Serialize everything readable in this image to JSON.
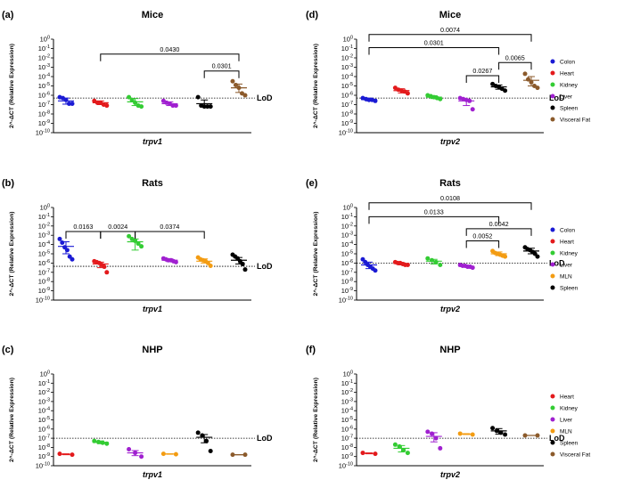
{
  "chart_data": [
    {
      "panel": "(a)",
      "type": "scatter",
      "title": "Mice",
      "xlabel": "trpv1",
      "ylabel": "2^-ΔCT (Relative Expression)",
      "ylim_log10": [
        -10,
        0
      ],
      "y_scale": "log",
      "lod_log10": -6.3,
      "lod_label": "LoD",
      "legend": [],
      "groups": [
        {
          "name": "Colon",
          "color": "#1a1ad4",
          "values_log10": [
            -6.2,
            -6.3,
            -6.5,
            -6.9,
            -6.9
          ],
          "mean_log10": -6.6,
          "err_log10": [
            -6.95,
            -6.3
          ]
        },
        {
          "name": "Heart",
          "color": "#e31a1c",
          "values_log10": [
            -6.6,
            -6.8,
            -6.8,
            -7.0,
            -7.1
          ],
          "mean_log10": -6.8,
          "err_log10": [
            -7.0,
            -6.6
          ]
        },
        {
          "name": "Kidney",
          "color": "#33cc33",
          "values_log10": [
            -6.2,
            -6.5,
            -6.8,
            -7.1,
            -7.2
          ],
          "mean_log10": -6.7,
          "err_log10": [
            -7.1,
            -6.35
          ]
        },
        {
          "name": "Liver",
          "color": "#a020d0",
          "values_log10": [
            -6.6,
            -6.8,
            -6.9,
            -7.1,
            -7.1
          ],
          "mean_log10": -6.9,
          "err_log10": [
            -7.1,
            -6.7
          ]
        },
        {
          "name": "Spleen",
          "color": "#000000",
          "values_log10": [
            -6.2,
            -7.1,
            -7.2,
            -7.2,
            -7.2
          ],
          "mean_log10": -6.9,
          "err_log10": [
            -7.2,
            -6.5
          ]
        },
        {
          "name": "Visceral Fat",
          "color": "#8b5a2b",
          "values_log10": [
            -4.5,
            -4.9,
            -5.2,
            -5.8,
            -6.0
          ],
          "mean_log10": -5.2,
          "err_log10": [
            -5.7,
            -4.8
          ]
        }
      ],
      "comparisons": [
        {
          "from": 1,
          "to": 5,
          "label": "0.0430",
          "at_log10": -1.6
        },
        {
          "from": 4,
          "to": 5,
          "label": "0.0301",
          "at_log10": -3.4
        }
      ]
    },
    {
      "panel": "(b)",
      "type": "scatter",
      "title": "Rats",
      "xlabel": "trpv1",
      "ylabel": "2^-ΔCT (Relative Expression)",
      "ylim_log10": [
        -10,
        0
      ],
      "y_scale": "log",
      "lod_log10": -6.35,
      "lod_label": "LoD",
      "legend": [],
      "groups": [
        {
          "name": "Colon",
          "color": "#1a1ad4",
          "values_log10": [
            -3.4,
            -3.8,
            -4.3,
            -4.6,
            -5.3,
            -5.6
          ],
          "mean_log10": -4.2,
          "err_log10": [
            -5.0,
            -3.7
          ]
        },
        {
          "name": "Heart",
          "color": "#e31a1c",
          "values_log10": [
            -5.8,
            -5.9,
            -6.0,
            -6.2,
            -6.4,
            -7.0
          ],
          "mean_log10": -6.1,
          "err_log10": [
            -6.5,
            -5.9
          ]
        },
        {
          "name": "Kidney",
          "color": "#33cc33",
          "values_log10": [
            -3.1,
            -3.4,
            -3.6,
            -3.9,
            -4.2
          ],
          "mean_log10": -3.7,
          "err_log10": [
            -4.6,
            -3.4
          ]
        },
        {
          "name": "Liver",
          "color": "#a020d0",
          "values_log10": [
            -5.5,
            -5.6,
            -5.7,
            -5.7,
            -5.8,
            -5.9
          ],
          "mean_log10": -5.7,
          "err_log10": [
            -5.85,
            -5.55
          ]
        },
        {
          "name": "MLN",
          "color": "#f39c12",
          "values_log10": [
            -5.4,
            -5.6,
            -5.7,
            -5.8,
            -6.0,
            -6.3
          ],
          "mean_log10": -5.8,
          "err_log10": [
            -6.0,
            -5.55
          ]
        },
        {
          "name": "Spleen",
          "color": "#000000",
          "values_log10": [
            -5.1,
            -5.3,
            -5.5,
            -5.8,
            -6.1,
            -6.7
          ],
          "mean_log10": -5.7,
          "err_log10": [
            -6.1,
            -5.4
          ]
        }
      ],
      "comparisons": [
        {
          "from": 0,
          "to": 1,
          "label": "0.0163",
          "at_log10": -2.6
        },
        {
          "from": 1,
          "to": 2,
          "label": "0.0024",
          "at_log10": -2.6
        },
        {
          "from": 2,
          "to": 4,
          "label": "0.0374",
          "at_log10": -2.6
        }
      ]
    },
    {
      "panel": "(c)",
      "type": "scatter",
      "title": "NHP",
      "xlabel": "trpv1",
      "ylabel": "2^-ΔCT (Relative Expression)",
      "ylim_log10": [
        -10,
        0
      ],
      "y_scale": "log",
      "lod_log10": -7.0,
      "lod_label": "LoD",
      "legend": [],
      "groups": [
        {
          "name": "Heart",
          "color": "#e31a1c",
          "values_log10": [
            -8.7,
            -8.8
          ],
          "mean_log10": -8.75,
          "err_log10": [
            -8.8,
            -8.7
          ]
        },
        {
          "name": "Kidney",
          "color": "#33cc33",
          "values_log10": [
            -7.3,
            -7.4,
            -7.5,
            -7.6
          ],
          "mean_log10": -7.45,
          "err_log10": [
            -7.6,
            -7.3
          ]
        },
        {
          "name": "Liver",
          "color": "#a020d0",
          "values_log10": [
            -8.2,
            -8.6,
            -9.0
          ],
          "mean_log10": -8.6,
          "err_log10": [
            -8.9,
            -8.35
          ]
        },
        {
          "name": "MLN",
          "color": "#f39c12",
          "values_log10": [
            -8.7,
            -8.75
          ],
          "mean_log10": -8.72,
          "err_log10": [
            -8.75,
            -8.7
          ]
        },
        {
          "name": "Spleen",
          "color": "#000000",
          "values_log10": [
            -6.4,
            -6.7,
            -7.3,
            -8.4
          ],
          "mean_log10": -6.9,
          "err_log10": [
            -7.5,
            -6.6
          ]
        },
        {
          "name": "Visceral Fat",
          "color": "#8b5a2b",
          "values_log10": [
            -8.8,
            -8.8
          ],
          "mean_log10": -8.8,
          "err_log10": [
            -8.8,
            -8.8
          ]
        }
      ],
      "comparisons": []
    },
    {
      "panel": "(d)",
      "type": "scatter",
      "title": "Mice",
      "xlabel": "trpv2",
      "ylabel": "2^-ΔCT (Relative Expression)",
      "ylim_log10": [
        -10,
        0
      ],
      "y_scale": "log",
      "lod_log10": -6.3,
      "lod_label": "LoD",
      "legend": [
        "Colon",
        "Heart",
        "Kidney",
        "Liver",
        "Spleen",
        "Visceral Fat"
      ],
      "groups": [
        {
          "name": "Colon",
          "color": "#1a1ad4",
          "values_log10": [
            -6.3,
            -6.4,
            -6.5,
            -6.5,
            -6.6
          ],
          "mean_log10": -6.45,
          "err_log10": [
            -6.6,
            -6.3
          ]
        },
        {
          "name": "Heart",
          "color": "#e31a1c",
          "values_log10": [
            -5.2,
            -5.4,
            -5.5,
            -5.6,
            -5.8
          ],
          "mean_log10": -5.5,
          "err_log10": [
            -5.75,
            -5.3
          ]
        },
        {
          "name": "Kidney",
          "color": "#33cc33",
          "values_log10": [
            -6.0,
            -6.1,
            -6.2,
            -6.3,
            -6.4
          ],
          "mean_log10": -6.2,
          "err_log10": [
            -6.35,
            -6.05
          ]
        },
        {
          "name": "Liver",
          "color": "#a020d0",
          "values_log10": [
            -6.3,
            -6.4,
            -6.5,
            -6.6,
            -7.5
          ],
          "mean_log10": -6.6,
          "err_log10": [
            -7.1,
            -6.4
          ]
        },
        {
          "name": "Spleen",
          "color": "#000000",
          "values_log10": [
            -4.8,
            -5.0,
            -5.1,
            -5.3,
            -5.5
          ],
          "mean_log10": -5.1,
          "err_log10": [
            -5.35,
            -4.9
          ]
        },
        {
          "name": "Visceral Fat",
          "color": "#8b5a2b",
          "values_log10": [
            -3.7,
            -4.3,
            -4.6,
            -5.0,
            -5.2
          ],
          "mean_log10": -4.4,
          "err_log10": [
            -5.0,
            -4.0
          ]
        }
      ],
      "comparisons": [
        {
          "from": 0,
          "to": 5,
          "label": "0.0074",
          "at_log10": 0.5
        },
        {
          "from": 0,
          "to": 4,
          "label": "0.0301",
          "at_log10": -0.9
        },
        {
          "from": 4,
          "to": 5,
          "label": "0.0065",
          "at_log10": -2.5
        },
        {
          "from": 3,
          "to": 4,
          "label": "0.0267",
          "at_log10": -3.9
        }
      ]
    },
    {
      "panel": "(e)",
      "type": "scatter",
      "title": "Rats",
      "xlabel": "trpv2",
      "ylabel": "2^-ΔCT (Relative Expression)",
      "ylim_log10": [
        -10,
        0
      ],
      "y_scale": "log",
      "lod_log10": -6.0,
      "lod_label": "LoD",
      "legend": [
        "Colon",
        "Heart",
        "Kidney",
        "Liver",
        "MLN",
        "Spleen"
      ],
      "groups": [
        {
          "name": "Colon",
          "color": "#1a1ad4",
          "values_log10": [
            -5.6,
            -5.9,
            -6.2,
            -6.4,
            -6.6,
            -6.8
          ],
          "mean_log10": -6.2,
          "err_log10": [
            -6.6,
            -5.9
          ]
        },
        {
          "name": "Heart",
          "color": "#e31a1c",
          "values_log10": [
            -5.9,
            -6.0,
            -6.0,
            -6.1,
            -6.2,
            -6.2
          ],
          "mean_log10": -6.05,
          "err_log10": [
            -6.2,
            -5.95
          ]
        },
        {
          "name": "Kidney",
          "color": "#33cc33",
          "values_log10": [
            -5.5,
            -5.7,
            -5.9,
            -6.2
          ],
          "mean_log10": -5.8,
          "err_log10": [
            -6.1,
            -5.6
          ]
        },
        {
          "name": "Liver",
          "color": "#a020d0",
          "values_log10": [
            -6.2,
            -6.3,
            -6.3,
            -6.4,
            -6.4,
            -6.5
          ],
          "mean_log10": -6.35,
          "err_log10": [
            -6.45,
            -6.25
          ]
        },
        {
          "name": "MLN",
          "color": "#f39c12",
          "values_log10": [
            -4.7,
            -4.9,
            -5.0,
            -5.1,
            -5.2,
            -5.3
          ],
          "mean_log10": -5.0,
          "err_log10": [
            -5.2,
            -4.8
          ]
        },
        {
          "name": "Spleen",
          "color": "#000000",
          "values_log10": [
            -4.3,
            -4.5,
            -4.6,
            -4.8,
            -5.0,
            -5.3
          ],
          "mean_log10": -4.7,
          "err_log10": [
            -5.0,
            -4.4
          ]
        }
      ],
      "comparisons": [
        {
          "from": 0,
          "to": 5,
          "label": "0.0108",
          "at_log10": 0.5
        },
        {
          "from": 0,
          "to": 4,
          "label": "0.0133",
          "at_log10": -1.0
        },
        {
          "from": 3,
          "to": 5,
          "label": "0.0042",
          "at_log10": -2.3
        },
        {
          "from": 3,
          "to": 4,
          "label": "0.0052",
          "at_log10": -3.6
        }
      ]
    },
    {
      "panel": "(f)",
      "type": "scatter",
      "title": "NHP",
      "xlabel": "trpv2",
      "ylabel": "2^-ΔCT (Relative Expression)",
      "ylim_log10": [
        -10,
        0
      ],
      "y_scale": "log",
      "lod_log10": -7.0,
      "lod_label": "LoD",
      "legend": [
        "Heart",
        "Kidney",
        "Liver",
        "MLN",
        "Spleen",
        "Visceral Fat"
      ],
      "groups": [
        {
          "name": "Heart",
          "color": "#e31a1c",
          "values_log10": [
            -8.6,
            -8.7
          ],
          "mean_log10": -8.65,
          "err_log10": [
            -8.7,
            -8.6
          ]
        },
        {
          "name": "Kidney",
          "color": "#33cc33",
          "values_log10": [
            -7.7,
            -7.9,
            -8.3,
            -8.6
          ],
          "mean_log10": -8.1,
          "err_log10": [
            -8.5,
            -7.8
          ]
        },
        {
          "name": "Liver",
          "color": "#a020d0",
          "values_log10": [
            -6.3,
            -6.5,
            -7.0,
            -8.1
          ],
          "mean_log10": -6.8,
          "err_log10": [
            -7.4,
            -6.4
          ]
        },
        {
          "name": "MLN",
          "color": "#f39c12",
          "values_log10": [
            -6.5,
            -6.6
          ],
          "mean_log10": -6.55,
          "err_log10": [
            -6.6,
            -6.5
          ]
        },
        {
          "name": "Spleen",
          "color": "#000000",
          "values_log10": [
            -5.9,
            -6.2,
            -6.4,
            -6.6
          ],
          "mean_log10": -6.2,
          "err_log10": [
            -6.55,
            -5.95
          ]
        },
        {
          "name": "Visceral Fat",
          "color": "#8b5a2b",
          "values_log10": [
            -6.7,
            -6.7
          ],
          "mean_log10": -6.7,
          "err_log10": [
            -6.7,
            -6.7
          ]
        }
      ],
      "comparisons": []
    }
  ]
}
